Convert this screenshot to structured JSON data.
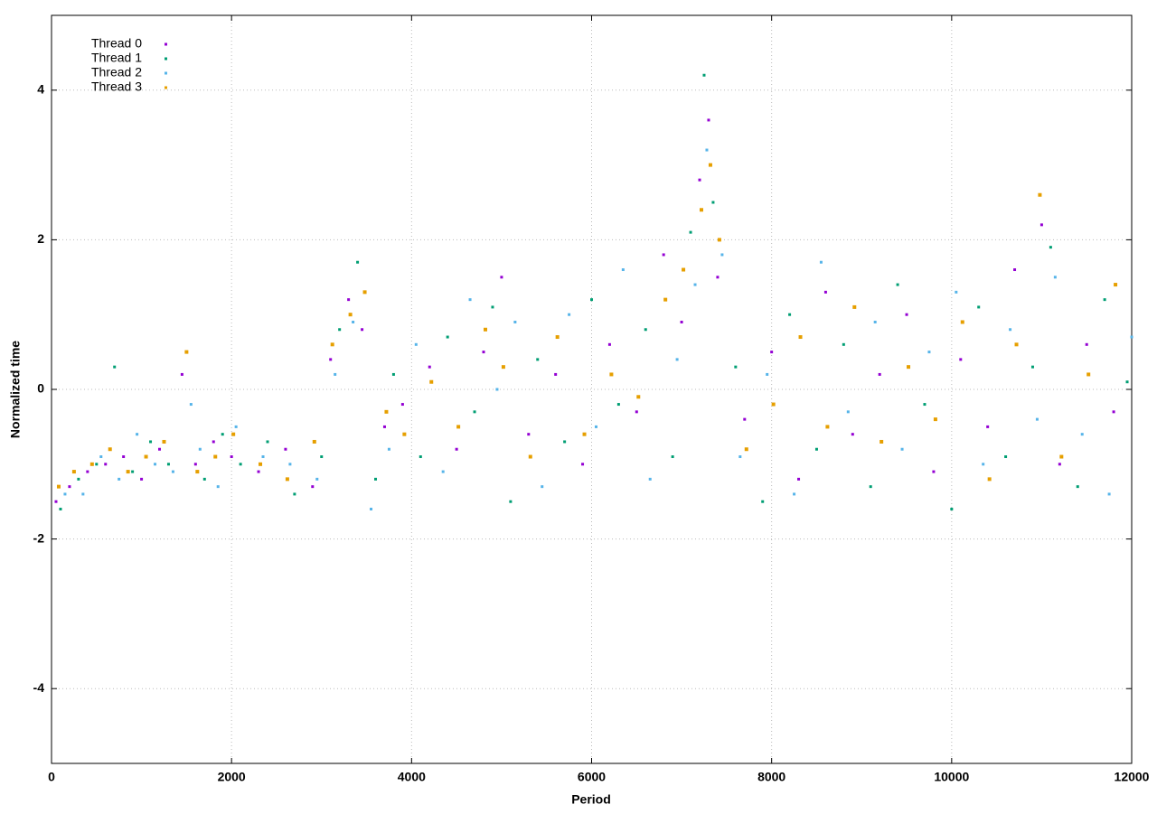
{
  "chart_data": {
    "type": "scatter",
    "x_label": "Period",
    "y_label": "Normalized time",
    "xlim": [
      0,
      12000
    ],
    "xticks": [
      0,
      2000,
      4000,
      6000,
      8000,
      10000,
      12000
    ],
    "ylim": [
      -5,
      5
    ],
    "yticks": [
      -4,
      -2,
      0,
      2,
      4
    ],
    "grid": true,
    "legend": "top-left",
    "series": [
      {
        "name": "Thread 0",
        "color": "#9400d3",
        "x": [
          50,
          200,
          400,
          600,
          800,
          1000,
          1200,
          1450,
          1600,
          1800,
          2000,
          2300,
          2600,
          2900,
          3100,
          3300,
          3450,
          3700,
          3900,
          4200,
          4500,
          4800,
          5000,
          5300,
          5600,
          5900,
          6200,
          6500,
          6800,
          7000,
          7200,
          7300,
          7400,
          7700,
          8000,
          8300,
          8600,
          8900,
          9200,
          9500,
          9800,
          10100,
          10400,
          10700,
          11000,
          11200,
          11500,
          11800
        ],
        "y": [
          -1.5,
          -1.3,
          -1.1,
          -1.0,
          -0.9,
          -1.2,
          -0.8,
          0.2,
          -1.0,
          -0.7,
          -0.9,
          -1.1,
          -0.8,
          -1.3,
          0.4,
          1.2,
          0.8,
          -0.5,
          -0.2,
          0.3,
          -0.8,
          0.5,
          1.5,
          -0.6,
          0.2,
          -1.0,
          0.6,
          -0.3,
          1.8,
          0.9,
          2.8,
          3.6,
          1.5,
          -0.4,
          0.5,
          -1.2,
          1.3,
          -0.6,
          0.2,
          1.0,
          -1.1,
          0.4,
          -0.5,
          1.6,
          2.2,
          -1.0,
          0.6,
          -0.3
        ]
      },
      {
        "name": "Thread 1",
        "color": "#009e73",
        "x": [
          100,
          300,
          500,
          700,
          900,
          1100,
          1300,
          1500,
          1700,
          1900,
          2100,
          2400,
          2700,
          3000,
          3200,
          3400,
          3600,
          3800,
          4100,
          4400,
          4700,
          4900,
          5100,
          5400,
          5700,
          6000,
          6300,
          6600,
          6900,
          7100,
          7250,
          7350,
          7600,
          7900,
          8200,
          8500,
          8800,
          9100,
          9400,
          9700,
          10000,
          10300,
          10600,
          10900,
          11100,
          11400,
          11700,
          11950
        ],
        "y": [
          -1.6,
          -1.2,
          -1.0,
          0.3,
          -1.1,
          -0.7,
          -1.0,
          0.5,
          -1.2,
          -0.6,
          -1.0,
          -0.7,
          -1.4,
          -0.9,
          0.8,
          1.7,
          -1.2,
          0.2,
          -0.9,
          0.7,
          -0.3,
          1.1,
          -1.5,
          0.4,
          -0.7,
          1.2,
          -0.2,
          0.8,
          -0.9,
          2.1,
          4.2,
          2.5,
          0.3,
          -1.5,
          1.0,
          -0.8,
          0.6,
          -1.3,
          1.4,
          -0.2,
          -1.6,
          1.1,
          -0.9,
          0.3,
          1.9,
          -1.3,
          1.2,
          0.1
        ]
      },
      {
        "name": "Thread 2",
        "color": "#56b4e9",
        "x": [
          150,
          350,
          550,
          750,
          950,
          1150,
          1350,
          1550,
          1650,
          1850,
          2050,
          2350,
          2650,
          2950,
          3150,
          3350,
          3550,
          3750,
          4050,
          4350,
          4650,
          4950,
          5150,
          5450,
          5750,
          6050,
          6350,
          6650,
          6950,
          7150,
          7280,
          7450,
          7650,
          7950,
          8250,
          8550,
          8850,
          9150,
          9450,
          9750,
          10050,
          10350,
          10650,
          10950,
          11150,
          11450,
          11750,
          12000
        ],
        "y": [
          -1.4,
          -1.4,
          -0.9,
          -1.2,
          -0.6,
          -1.0,
          -1.1,
          -0.2,
          -0.8,
          -1.3,
          -0.5,
          -0.9,
          -1.0,
          -1.2,
          0.2,
          0.9,
          -1.6,
          -0.8,
          0.6,
          -1.1,
          1.2,
          0.0,
          0.9,
          -1.3,
          1.0,
          -0.5,
          1.6,
          -1.2,
          0.4,
          1.4,
          3.2,
          1.8,
          -0.9,
          0.2,
          -1.4,
          1.7,
          -0.3,
          0.9,
          -0.8,
          0.5,
          1.3,
          -1.0,
          0.8,
          -0.4,
          1.5,
          -0.6,
          -1.4,
          0.7
        ]
      },
      {
        "name": "Thread 3",
        "color": "#e69f00",
        "x": [
          80,
          250,
          450,
          650,
          850,
          1050,
          1250,
          1500,
          1620,
          1820,
          2020,
          2320,
          2620,
          2920,
          3120,
          3320,
          3480,
          3720,
          3920,
          4220,
          4520,
          4820,
          5020,
          5320,
          5620,
          5920,
          6220,
          6520,
          6820,
          7020,
          7220,
          7320,
          7420,
          7720,
          8020,
          8320,
          8620,
          8920,
          9220,
          9520,
          9820,
          10120,
          10420,
          10720,
          10980,
          11220,
          11520,
          11820
        ],
        "y": [
          -1.3,
          -1.1,
          -1.0,
          -0.8,
          -1.1,
          -0.9,
          -0.7,
          0.5,
          -1.1,
          -0.9,
          -0.6,
          -1.0,
          -1.2,
          -0.7,
          0.6,
          1.0,
          1.3,
          -0.3,
          -0.6,
          0.1,
          -0.5,
          0.8,
          0.3,
          -0.9,
          0.7,
          -0.6,
          0.2,
          -0.1,
          1.2,
          1.6,
          2.4,
          3.0,
          2.0,
          -0.8,
          -0.2,
          0.7,
          -0.5,
          1.1,
          -0.7,
          0.3,
          -0.4,
          0.9,
          -1.2,
          0.6,
          2.6,
          -0.9,
          0.2,
          1.4
        ]
      }
    ]
  }
}
